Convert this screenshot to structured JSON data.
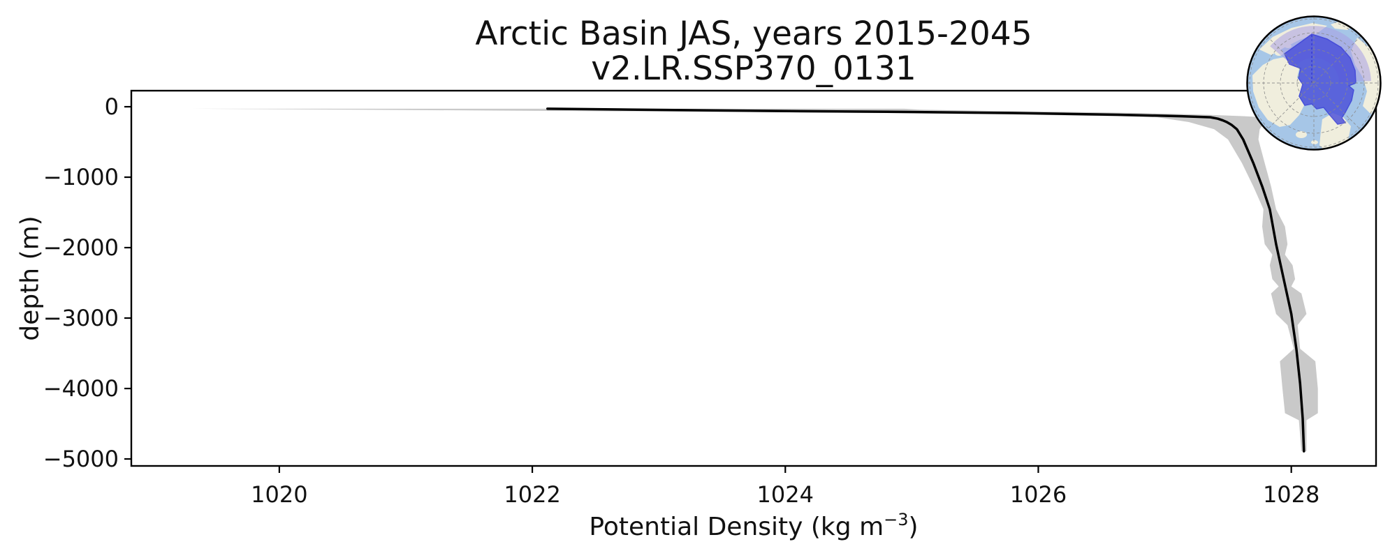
{
  "chart_data": {
    "type": "line",
    "title": "Arctic Basin JAS, years 2015-2045",
    "subtitle": "v2.LR.SSP370_0131",
    "xlabel_prefix": "Potential Density (kg m",
    "xlabel_superscript": "−3",
    "xlabel_suffix": ")",
    "ylabel": "depth (m)",
    "xlim": [
      1018.83,
      1028.67
    ],
    "ylim": [
      -5099,
      228
    ],
    "grid": false,
    "legend": "none",
    "xticks": [
      1020,
      1022,
      1024,
      1026,
      1028
    ],
    "xtick_labels": [
      "1020",
      "1022",
      "1024",
      "1026",
      "1028"
    ],
    "yticks": [
      0,
      -1000,
      -2000,
      -3000,
      -4000,
      -5000
    ],
    "ytick_labels": [
      "0",
      "−1000",
      "−2000",
      "−3000",
      "−4000",
      "−5000"
    ],
    "series": [
      {
        "name": "mean potential density profile",
        "color": "#000000",
        "line_width": 3.5,
        "depth_m": [
          -28,
          -40,
          -59,
          -74,
          -89,
          -114,
          -134,
          -149,
          -170,
          -195,
          -218,
          -260,
          -320,
          -465,
          -800,
          -1130,
          -1455,
          -1950,
          -2446,
          -2941,
          -3436,
          -3931,
          -4426,
          -4891
        ],
        "density": [
          1022.12,
          1022.76,
          1023.87,
          1024.97,
          1025.8,
          1026.63,
          1027.13,
          1027.36,
          1027.42,
          1027.46,
          1027.49,
          1027.53,
          1027.57,
          1027.62,
          1027.7,
          1027.77,
          1027.83,
          1027.88,
          1027.94,
          1028.0,
          1028.04,
          1028.07,
          1028.09,
          1028.1
        ]
      }
    ],
    "band": {
      "name": "standard deviation envelope",
      "color": "#c9c9c9",
      "depth_m": [
        -28,
        -40,
        -59,
        -74,
        -89,
        -114,
        -134,
        -149,
        -218,
        -320,
        -465,
        -800,
        -1130,
        -1455,
        -1700,
        -1950,
        -2100,
        -2250,
        -2446,
        -2550,
        -2650,
        -2941,
        -3100,
        -3436,
        -3614,
        -4000,
        -4350,
        -4450,
        -4891
      ],
      "density_min": [
        1019.3,
        1020.46,
        1022.12,
        1023.67,
        1024.8,
        1025.93,
        1026.63,
        1026.94,
        1027.19,
        1027.39,
        1027.5,
        1027.61,
        1027.7,
        1027.78,
        1027.77,
        1027.79,
        1027.85,
        1027.83,
        1027.85,
        1027.9,
        1027.84,
        1027.88,
        1027.97,
        1028.02,
        1027.91,
        1027.93,
        1027.95,
        1028.06,
        1028.08
      ],
      "density_max": [
        1024.94,
        1025.06,
        1025.62,
        1026.27,
        1026.8,
        1027.33,
        1027.63,
        1027.78,
        1027.79,
        1027.75,
        1027.74,
        1027.79,
        1027.84,
        1027.88,
        1027.95,
        1027.97,
        1027.95,
        1028.01,
        1028.03,
        1028.0,
        1028.08,
        1028.12,
        1028.05,
        1028.07,
        1028.19,
        1028.21,
        1028.21,
        1028.12,
        1028.12
      ]
    },
    "inset": {
      "description": "polar map of Arctic Basin region",
      "colors": {
        "ocean": "#a6c6e7",
        "land": "#f0eedd",
        "region_fill": "#4a4fd8",
        "region_outline": "#3136d6",
        "region_halo": "#a89ee4",
        "graticule": "#8a8a8a",
        "border": "#000000"
      }
    }
  },
  "axes": {
    "spine_color": "#000000",
    "background": "#ffffff"
  }
}
